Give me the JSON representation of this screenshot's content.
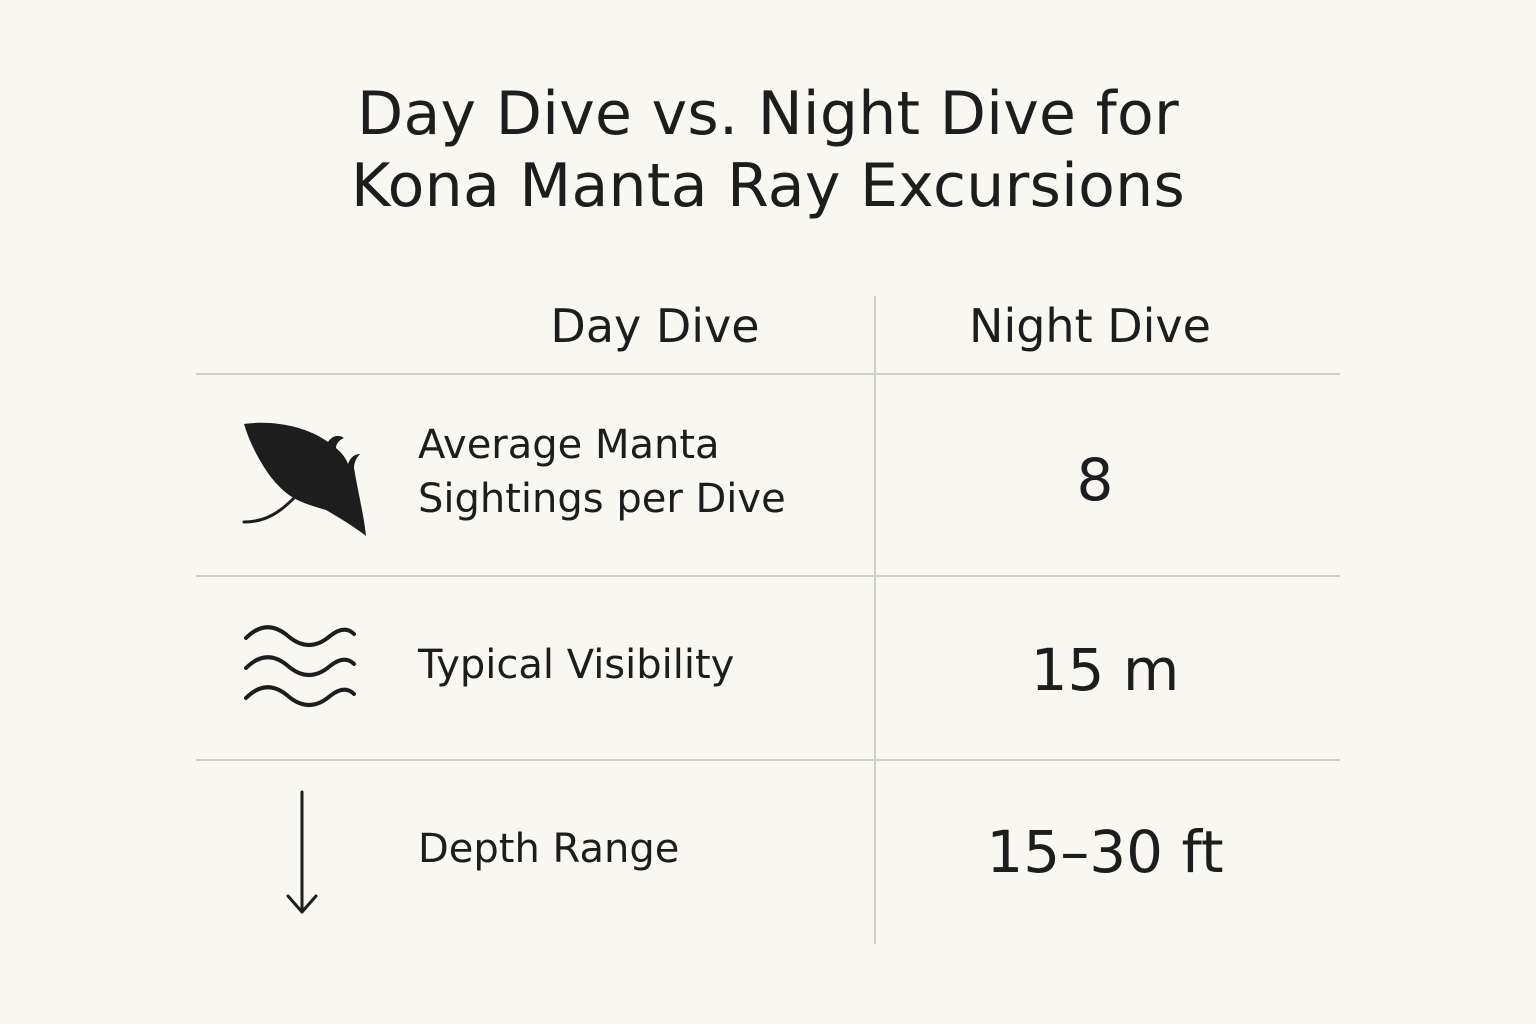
{
  "title": {
    "line1": "Day Dive vs. Night Dive for",
    "line2": "Kona Manta Ray Excursions"
  },
  "columns": {
    "day": "Day Dive",
    "night": "Night Dive"
  },
  "rows": [
    {
      "icon": "manta-ray-icon",
      "label_line1": "Average Manta",
      "label_line2": "Sightings per Dive",
      "value": "8"
    },
    {
      "icon": "waves-icon",
      "label": "Typical Visibility",
      "value": "15 m"
    },
    {
      "icon": "arrow-down-icon",
      "label": "Depth Range",
      "value": "15–30 ft"
    }
  ],
  "colors": {
    "background": "#f8f7f2",
    "text": "#1d1d1d",
    "divider": "#cfcfcb"
  }
}
